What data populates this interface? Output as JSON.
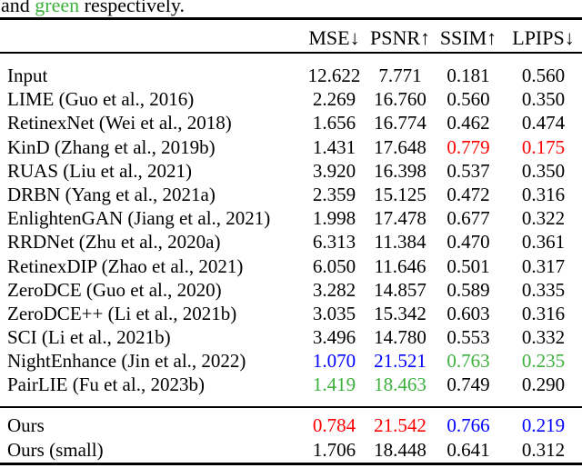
{
  "colors": {
    "red": "#ff0000",
    "blue": "#0000ff",
    "green": "#3cb03c",
    "text": "#000000"
  },
  "caption": {
    "prefix": "and ",
    "highlight": "green",
    "suffix": " respectively."
  },
  "header": {
    "metric_labels": [
      "MSE↓",
      "PSNR↑",
      "SSIM↑",
      "LPIPS↓"
    ]
  },
  "table": {
    "rows": [
      {
        "label": "Input",
        "values": [
          "12.622",
          "7.771",
          "0.181",
          "0.560"
        ],
        "value_colors": [
          null,
          null,
          null,
          null
        ]
      },
      {
        "label": "LIME (Guo et al., 2016)",
        "values": [
          "2.269",
          "16.760",
          "0.560",
          "0.350"
        ],
        "value_colors": [
          null,
          null,
          null,
          null
        ]
      },
      {
        "label": "RetinexNet (Wei et al., 2018)",
        "values": [
          "1.656",
          "16.774",
          "0.462",
          "0.474"
        ],
        "value_colors": [
          null,
          null,
          null,
          null
        ]
      },
      {
        "label": "KinD (Zhang et al., 2019b)",
        "values": [
          "1.431",
          "17.648",
          "0.779",
          "0.175"
        ],
        "value_colors": [
          null,
          null,
          "red",
          "red"
        ]
      },
      {
        "label": "RUAS (Liu et al., 2021)",
        "values": [
          "3.920",
          "16.398",
          "0.537",
          "0.350"
        ],
        "value_colors": [
          null,
          null,
          null,
          null
        ]
      },
      {
        "label": "DRBN (Yang et al., 2021a)",
        "values": [
          "2.359",
          "15.125",
          "0.472",
          "0.316"
        ],
        "value_colors": [
          null,
          null,
          null,
          null
        ]
      },
      {
        "label": "EnlightenGAN (Jiang et al., 2021)",
        "values": [
          "1.998",
          "17.478",
          "0.677",
          "0.322"
        ],
        "value_colors": [
          null,
          null,
          null,
          null
        ]
      },
      {
        "label": "RRDNet (Zhu et al., 2020a)",
        "values": [
          "6.313",
          "11.384",
          "0.470",
          "0.361"
        ],
        "value_colors": [
          null,
          null,
          null,
          null
        ]
      },
      {
        "label": "RetinexDIP (Zhao et al., 2021)",
        "values": [
          "6.050",
          "11.646",
          "0.501",
          "0.317"
        ],
        "value_colors": [
          null,
          null,
          null,
          null
        ]
      },
      {
        "label": "ZeroDCE (Guo et al., 2020)",
        "values": [
          "3.282",
          "14.857",
          "0.589",
          "0.335"
        ],
        "value_colors": [
          null,
          null,
          null,
          null
        ]
      },
      {
        "label": "ZeroDCE++ (Li et al., 2021b)",
        "values": [
          "3.035",
          "15.342",
          "0.603",
          "0.316"
        ],
        "value_colors": [
          null,
          null,
          null,
          null
        ]
      },
      {
        "label": "SCI (Li et al., 2021b)",
        "values": [
          "3.496",
          "14.780",
          "0.553",
          "0.332"
        ],
        "value_colors": [
          null,
          null,
          null,
          null
        ]
      },
      {
        "label": "NightEnhance (Jin et al., 2022)",
        "values": [
          "1.070",
          "21.521",
          "0.763",
          "0.235"
        ],
        "value_colors": [
          "blue",
          "blue",
          "green",
          "green"
        ]
      },
      {
        "label": "PairLIE (Fu et al., 2023b)",
        "values": [
          "1.419",
          "18.463",
          "0.749",
          "0.290"
        ],
        "value_colors": [
          "green",
          "green",
          null,
          null
        ]
      }
    ],
    "footer_rows": [
      {
        "label": "Ours",
        "values": [
          "0.784",
          "21.542",
          "0.766",
          "0.219"
        ],
        "value_colors": [
          "red",
          "red",
          "blue",
          "blue"
        ]
      },
      {
        "label": "Ours (small)",
        "values": [
          "1.706",
          "18.448",
          "0.641",
          "0.312"
        ],
        "value_colors": [
          null,
          null,
          null,
          null
        ]
      }
    ]
  }
}
